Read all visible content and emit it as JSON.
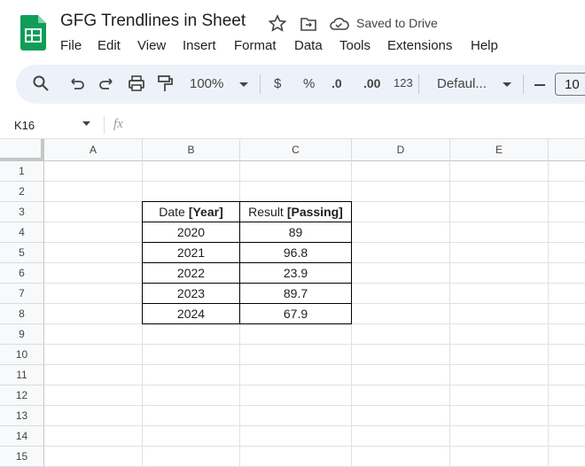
{
  "header": {
    "title": "GFG Trendlines in Sheet",
    "status": "Saved to Drive"
  },
  "menu": [
    "File",
    "Edit",
    "View",
    "Insert",
    "Format",
    "Data",
    "Tools",
    "Extensions",
    "Help"
  ],
  "toolbar": {
    "zoom": "100%",
    "currency": "$",
    "percent": "%",
    "decrease_decimal": ".0",
    "increase_decimal": ".00",
    "number_format": "123",
    "font": "Defaul...",
    "font_size": "10"
  },
  "formula_bar": {
    "name_box": "K16",
    "fx": "fx"
  },
  "columns": [
    "A",
    "B",
    "C",
    "D",
    "E"
  ],
  "rows": [
    1,
    2,
    3,
    4,
    5,
    6,
    7,
    8,
    9,
    10,
    11,
    12,
    13,
    14,
    15
  ],
  "table": {
    "header": [
      {
        "text": "Date",
        "bold": "[Year]"
      },
      {
        "text": "Result",
        "bold": "[Passing]"
      }
    ],
    "rows": [
      [
        2020,
        89
      ],
      [
        2021,
        96.8
      ],
      [
        2022,
        23.9
      ],
      [
        2023,
        89.7
      ],
      [
        2024,
        67.9
      ]
    ]
  }
}
